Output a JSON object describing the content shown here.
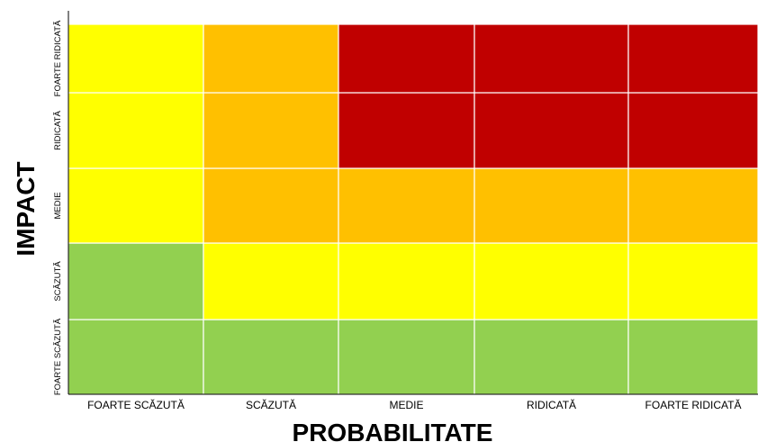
{
  "chart_data": {
    "type": "heatmap",
    "title": "",
    "xlabel": "PROBABILITATE",
    "ylabel": "IMPACT",
    "x_categories": [
      "FOARTE SCĂZUTĂ",
      "SCĂZUTĂ",
      "MEDIE",
      "RIDICATĂ",
      "FOARTE RIDICATĂ"
    ],
    "y_categories": [
      "FOARTE SCĂZUTĂ",
      "SCĂZUTĂ",
      "MEDIE",
      "RIDICATĂ",
      "FOARTE RIDICATĂ"
    ],
    "colors": {
      "green": "#92d050",
      "yellow": "#ffff00",
      "orange": "#ffc000",
      "red": "#c00000"
    },
    "cells": [
      [
        "green",
        "green",
        "green",
        "green",
        "green"
      ],
      [
        "green",
        "yellow",
        "yellow",
        "yellow",
        "yellow"
      ],
      [
        "yellow",
        "orange",
        "orange",
        "orange",
        "orange"
      ],
      [
        "yellow",
        "orange",
        "red",
        "red",
        "red"
      ],
      [
        "yellow",
        "orange",
        "red",
        "red",
        "red"
      ]
    ],
    "grid": true
  }
}
